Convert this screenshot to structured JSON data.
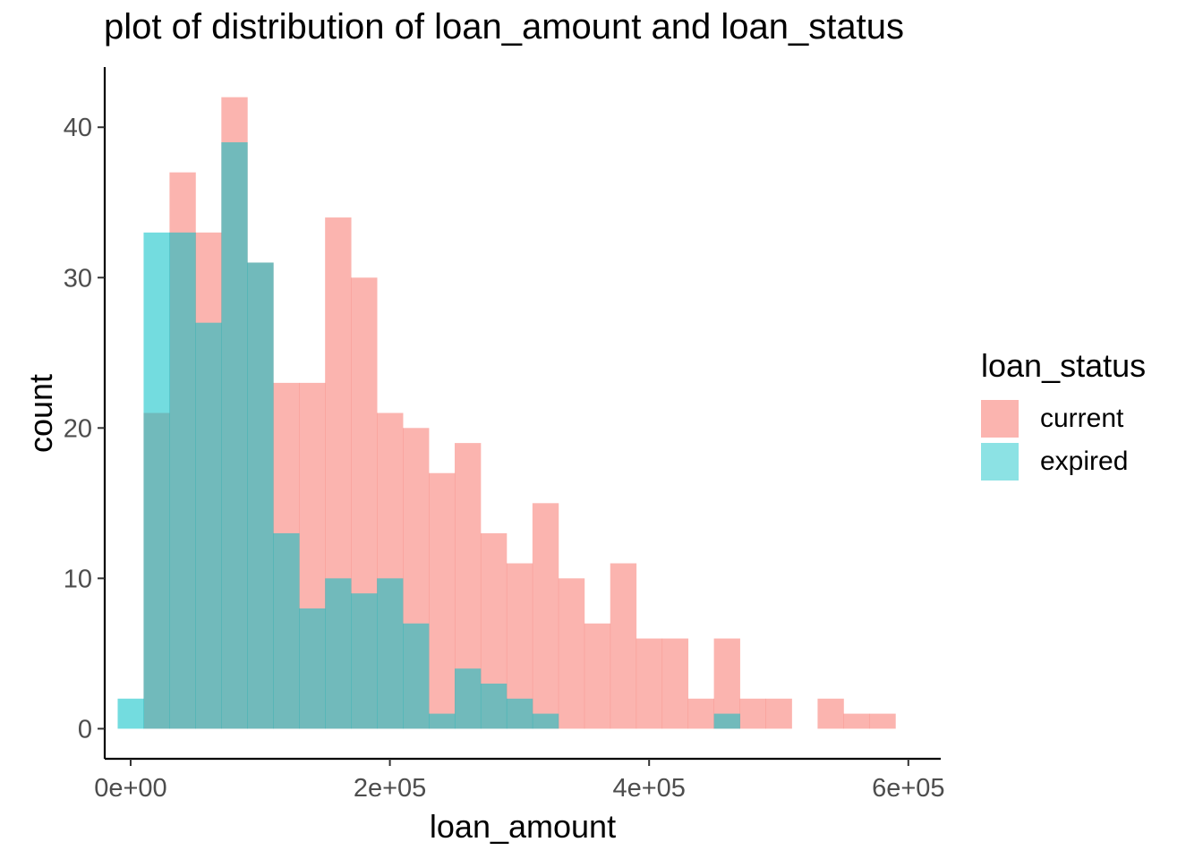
{
  "chart_data": {
    "type": "histogram",
    "title": "plot of distribution of loan_amount and loan_status",
    "xlabel": "loan_amount",
    "ylabel": "count",
    "xlim": [
      -20000,
      625000
    ],
    "ylim": [
      -2,
      44
    ],
    "x_ticks": [
      {
        "value": 0,
        "label": "0e+00"
      },
      {
        "value": 200000,
        "label": "2e+05"
      },
      {
        "value": 400000,
        "label": "4e+05"
      },
      {
        "value": 600000,
        "label": "6e+05"
      }
    ],
    "y_ticks": [
      {
        "value": 0,
        "label": "0"
      },
      {
        "value": 10,
        "label": "10"
      },
      {
        "value": 20,
        "label": "20"
      },
      {
        "value": 30,
        "label": "30"
      },
      {
        "value": 40,
        "label": "40"
      }
    ],
    "bin_centers": [
      0,
      20000,
      40000,
      60000,
      80000,
      100000,
      120000,
      140000,
      160000,
      180000,
      200000,
      220000,
      240000,
      260000,
      280000,
      300000,
      320000,
      340000,
      360000,
      380000,
      400000,
      420000,
      440000,
      460000,
      480000,
      500000,
      520000,
      540000,
      560000,
      580000
    ],
    "bin_width": 20000,
    "legend": {
      "title": "loan_status",
      "position": "right"
    },
    "series": [
      {
        "name": "current",
        "color": "#F8766D",
        "values": [
          0,
          21,
          37,
          33,
          42,
          31,
          23,
          23,
          34,
          30,
          21,
          20,
          17,
          19,
          13,
          11,
          15,
          10,
          7,
          11,
          6,
          6,
          2,
          6,
          2,
          2,
          0,
          2,
          1,
          1
        ]
      },
      {
        "name": "expired",
        "color": "#00BFC4",
        "values": [
          2,
          33,
          33,
          27,
          39,
          31,
          13,
          8,
          10,
          9,
          10,
          7,
          1,
          4,
          3,
          2,
          1,
          0,
          0,
          0,
          0,
          0,
          0,
          1,
          0,
          0,
          0,
          0,
          0,
          0
        ]
      }
    ],
    "grid": false
  }
}
